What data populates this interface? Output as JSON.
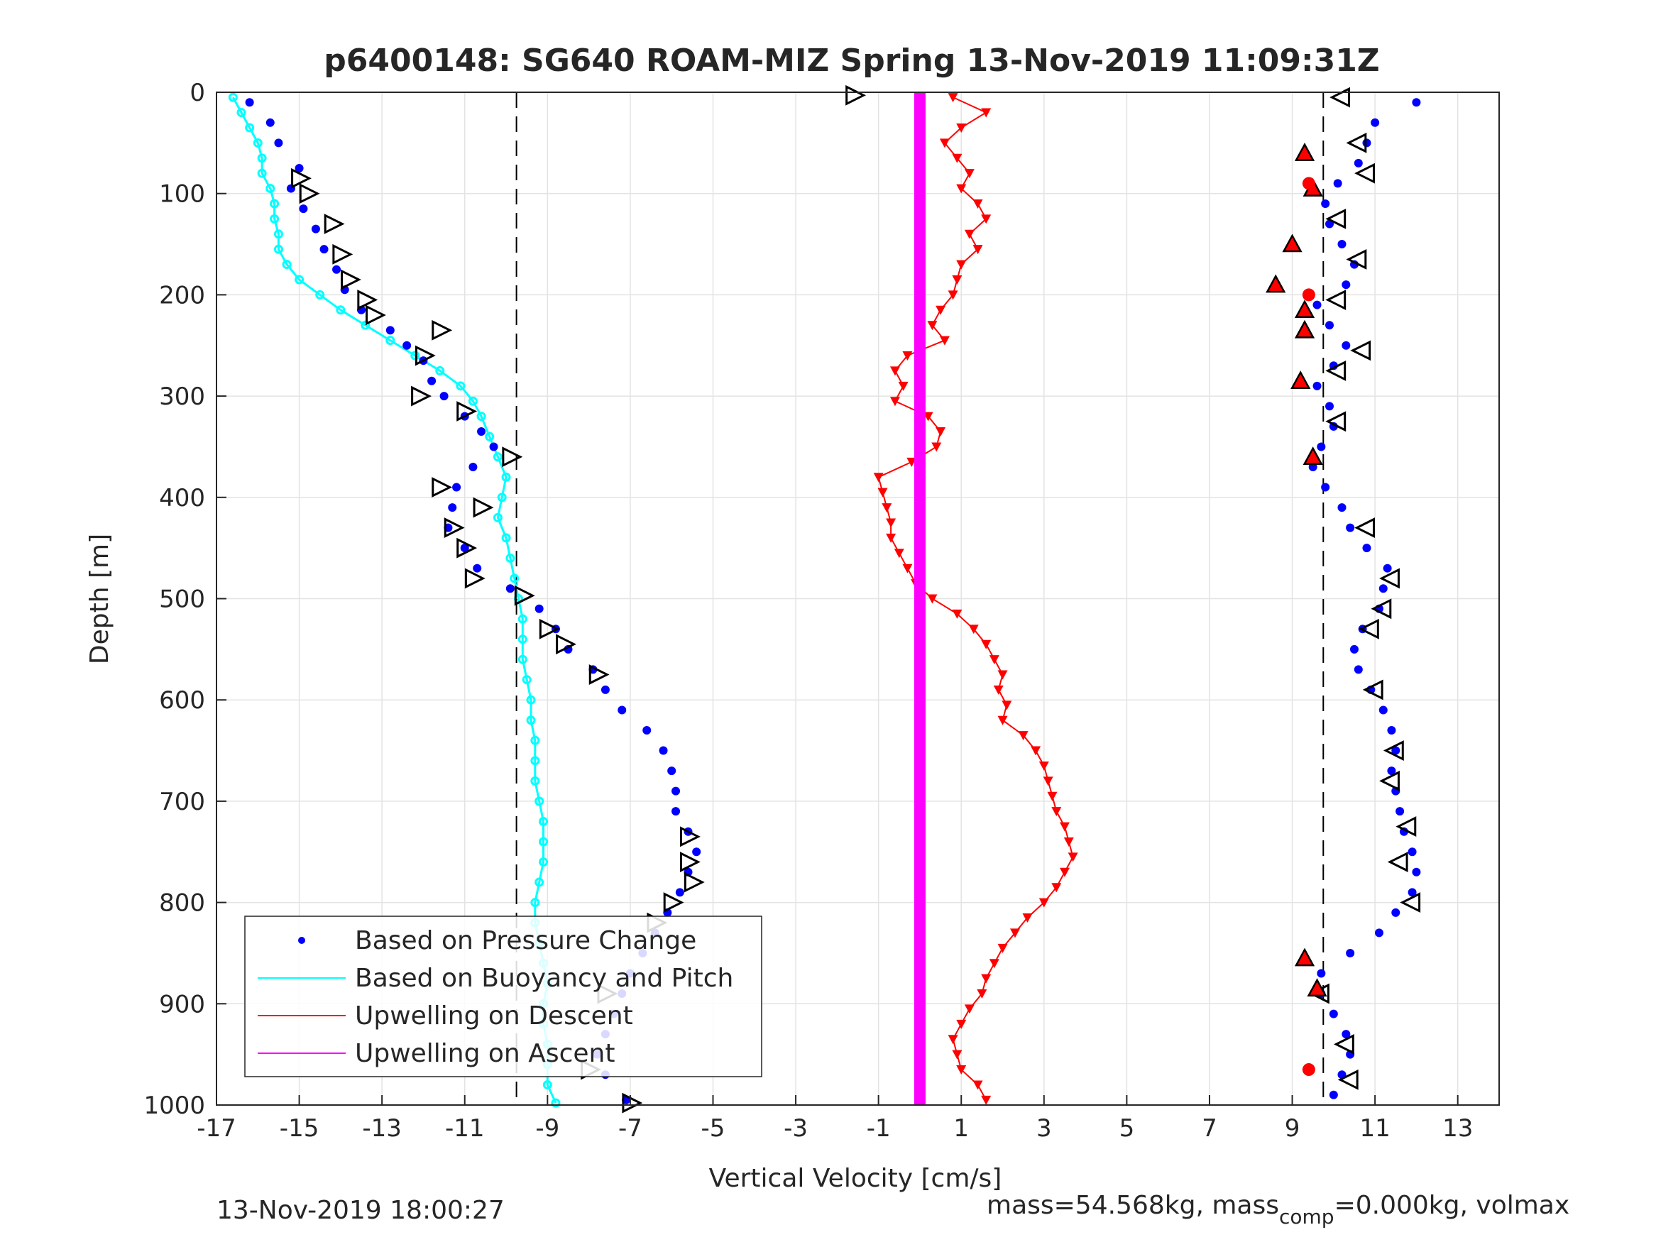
{
  "chart_data": {
    "type": "scatter",
    "title": "p6400148: SG640 ROAM-MIZ Spring 13-Nov-2019 11:09:31Z",
    "xlabel": "Vertical Velocity [cm/s]",
    "ylabel": "Depth [m]",
    "xlim": [
      -17,
      14
    ],
    "ylim": [
      0,
      1000
    ],
    "y_reversed": true,
    "grid": true,
    "legend_position": "bottom-left",
    "x_ticks": [
      -17,
      -15,
      -13,
      -11,
      -9,
      -7,
      -5,
      -3,
      -1,
      1,
      3,
      5,
      7,
      9,
      11,
      13
    ],
    "y_ticks": [
      0,
      100,
      200,
      300,
      400,
      500,
      600,
      700,
      800,
      900,
      1000
    ],
    "reference_lines_x": [
      -9.75,
      9.75
    ],
    "series": [
      {
        "name": "Based on Pressure Change",
        "color": "#0000ff",
        "marker": "dot",
        "descent_points": [
          [
            -16.2,
            10
          ],
          [
            -15.7,
            30
          ],
          [
            -15.5,
            50
          ],
          [
            -15.0,
            75
          ],
          [
            -15.2,
            95
          ],
          [
            -14.9,
            115
          ],
          [
            -14.6,
            135
          ],
          [
            -14.4,
            155
          ],
          [
            -14.1,
            175
          ],
          [
            -13.9,
            195
          ],
          [
            -13.5,
            215
          ],
          [
            -12.8,
            235
          ],
          [
            -12.4,
            250
          ],
          [
            -12.0,
            265
          ],
          [
            -11.8,
            285
          ],
          [
            -11.5,
            300
          ],
          [
            -11.0,
            320
          ],
          [
            -10.6,
            335
          ],
          [
            -10.3,
            350
          ],
          [
            -10.8,
            370
          ],
          [
            -11.2,
            390
          ],
          [
            -11.3,
            410
          ],
          [
            -11.4,
            430
          ],
          [
            -11.0,
            450
          ],
          [
            -10.7,
            470
          ],
          [
            -9.9,
            490
          ],
          [
            -9.2,
            510
          ],
          [
            -8.8,
            530
          ],
          [
            -8.5,
            550
          ],
          [
            -7.9,
            570
          ],
          [
            -7.6,
            590
          ],
          [
            -7.2,
            610
          ],
          [
            -6.6,
            630
          ],
          [
            -6.2,
            650
          ],
          [
            -6.0,
            670
          ],
          [
            -5.9,
            690
          ],
          [
            -5.9,
            710
          ],
          [
            -5.6,
            730
          ],
          [
            -5.4,
            750
          ],
          [
            -5.6,
            770
          ],
          [
            -5.8,
            790
          ],
          [
            -6.1,
            810
          ],
          [
            -6.4,
            830
          ],
          [
            -6.7,
            850
          ],
          [
            -7.0,
            870
          ],
          [
            -7.2,
            890
          ],
          [
            -7.4,
            910
          ],
          [
            -7.6,
            930
          ],
          [
            -7.8,
            950
          ],
          [
            -7.6,
            970
          ],
          [
            -7.1,
            995
          ]
        ],
        "ascent_points": [
          [
            12.0,
            10
          ],
          [
            11.0,
            30
          ],
          [
            10.8,
            50
          ],
          [
            10.6,
            70
          ],
          [
            10.1,
            90
          ],
          [
            9.8,
            110
          ],
          [
            9.9,
            130
          ],
          [
            10.2,
            150
          ],
          [
            10.5,
            170
          ],
          [
            10.3,
            190
          ],
          [
            9.6,
            210
          ],
          [
            9.9,
            230
          ],
          [
            10.3,
            250
          ],
          [
            10.0,
            270
          ],
          [
            9.6,
            290
          ],
          [
            9.9,
            310
          ],
          [
            10.0,
            330
          ],
          [
            9.7,
            350
          ],
          [
            9.5,
            370
          ],
          [
            9.8,
            390
          ],
          [
            10.2,
            410
          ],
          [
            10.4,
            430
          ],
          [
            10.8,
            450
          ],
          [
            11.3,
            470
          ],
          [
            11.2,
            490
          ],
          [
            11.1,
            510
          ],
          [
            10.7,
            530
          ],
          [
            10.5,
            550
          ],
          [
            10.6,
            570
          ],
          [
            10.9,
            590
          ],
          [
            11.2,
            610
          ],
          [
            11.4,
            630
          ],
          [
            11.5,
            650
          ],
          [
            11.4,
            670
          ],
          [
            11.5,
            690
          ],
          [
            11.6,
            710
          ],
          [
            11.7,
            730
          ],
          [
            11.9,
            750
          ],
          [
            12.0,
            770
          ],
          [
            11.9,
            790
          ],
          [
            11.5,
            810
          ],
          [
            11.1,
            830
          ],
          [
            10.4,
            850
          ],
          [
            9.7,
            870
          ],
          [
            9.7,
            890
          ],
          [
            10.0,
            910
          ],
          [
            10.3,
            930
          ],
          [
            10.4,
            950
          ],
          [
            10.2,
            970
          ],
          [
            10.0,
            990
          ]
        ]
      },
      {
        "name": "Based on Buoyancy and Pitch",
        "color": "#00ffff",
        "marker": "line",
        "points": [
          [
            -16.6,
            5
          ],
          [
            -16.4,
            20
          ],
          [
            -16.2,
            35
          ],
          [
            -16.0,
            50
          ],
          [
            -15.9,
            65
          ],
          [
            -15.9,
            80
          ],
          [
            -15.7,
            95
          ],
          [
            -15.6,
            110
          ],
          [
            -15.6,
            125
          ],
          [
            -15.5,
            140
          ],
          [
            -15.5,
            155
          ],
          [
            -15.3,
            170
          ],
          [
            -15.0,
            185
          ],
          [
            -14.5,
            200
          ],
          [
            -14.0,
            215
          ],
          [
            -13.4,
            230
          ],
          [
            -12.8,
            245
          ],
          [
            -12.2,
            260
          ],
          [
            -11.6,
            275
          ],
          [
            -11.1,
            290
          ],
          [
            -10.8,
            305
          ],
          [
            -10.6,
            320
          ],
          [
            -10.4,
            340
          ],
          [
            -10.2,
            360
          ],
          [
            -10.0,
            380
          ],
          [
            -10.1,
            400
          ],
          [
            -10.2,
            420
          ],
          [
            -10.0,
            440
          ],
          [
            -9.9,
            460
          ],
          [
            -9.8,
            480
          ],
          [
            -9.7,
            500
          ],
          [
            -9.6,
            520
          ],
          [
            -9.6,
            540
          ],
          [
            -9.6,
            560
          ],
          [
            -9.5,
            580
          ],
          [
            -9.4,
            600
          ],
          [
            -9.4,
            620
          ],
          [
            -9.3,
            640
          ],
          [
            -9.3,
            660
          ],
          [
            -9.3,
            680
          ],
          [
            -9.2,
            700
          ],
          [
            -9.1,
            720
          ],
          [
            -9.1,
            740
          ],
          [
            -9.1,
            760
          ],
          [
            -9.2,
            780
          ],
          [
            -9.3,
            800
          ],
          [
            -9.3,
            820
          ],
          [
            -9.2,
            840
          ],
          [
            -9.1,
            860
          ],
          [
            -9.0,
            880
          ],
          [
            -9.1,
            900
          ],
          [
            -9.1,
            920
          ],
          [
            -9.0,
            940
          ],
          [
            -9.0,
            960
          ],
          [
            -9.0,
            980
          ],
          [
            -8.8,
            998
          ]
        ]
      },
      {
        "name": "Upwelling on Descent",
        "color": "#ff0000",
        "marker": "triangle-down",
        "points": [
          [
            0.8,
            5
          ],
          [
            1.6,
            20
          ],
          [
            1.0,
            35
          ],
          [
            0.6,
            50
          ],
          [
            0.9,
            65
          ],
          [
            1.2,
            80
          ],
          [
            1.0,
            95
          ],
          [
            1.4,
            110
          ],
          [
            1.6,
            125
          ],
          [
            1.2,
            140
          ],
          [
            1.4,
            155
          ],
          [
            1.0,
            170
          ],
          [
            0.9,
            185
          ],
          [
            0.8,
            200
          ],
          [
            0.5,
            215
          ],
          [
            0.3,
            230
          ],
          [
            0.6,
            245
          ],
          [
            -0.3,
            260
          ],
          [
            -0.6,
            275
          ],
          [
            -0.4,
            290
          ],
          [
            -0.6,
            305
          ],
          [
            0.2,
            320
          ],
          [
            0.5,
            335
          ],
          [
            0.4,
            350
          ],
          [
            -0.2,
            365
          ],
          [
            -1.0,
            380
          ],
          [
            -0.9,
            395
          ],
          [
            -0.8,
            410
          ],
          [
            -0.7,
            425
          ],
          [
            -0.7,
            440
          ],
          [
            -0.5,
            455
          ],
          [
            -0.3,
            470
          ],
          [
            -0.1,
            485
          ],
          [
            0.3,
            500
          ],
          [
            0.9,
            515
          ],
          [
            1.3,
            530
          ],
          [
            1.6,
            545
          ],
          [
            1.8,
            560
          ],
          [
            2.0,
            575
          ],
          [
            1.9,
            590
          ],
          [
            2.1,
            605
          ],
          [
            2.0,
            620
          ],
          [
            2.5,
            635
          ],
          [
            2.8,
            650
          ],
          [
            3.0,
            665
          ],
          [
            3.1,
            680
          ],
          [
            3.2,
            695
          ],
          [
            3.3,
            710
          ],
          [
            3.5,
            725
          ],
          [
            3.6,
            740
          ],
          [
            3.7,
            755
          ],
          [
            3.5,
            770
          ],
          [
            3.3,
            785
          ],
          [
            3.0,
            800
          ],
          [
            2.6,
            815
          ],
          [
            2.3,
            830
          ],
          [
            2.0,
            845
          ],
          [
            1.8,
            860
          ],
          [
            1.6,
            875
          ],
          [
            1.5,
            890
          ],
          [
            1.2,
            905
          ],
          [
            1.0,
            920
          ],
          [
            0.8,
            935
          ],
          [
            0.9,
            950
          ],
          [
            1.0,
            965
          ],
          [
            1.4,
            980
          ],
          [
            1.6,
            995
          ]
        ]
      },
      {
        "name": "Upwelling on Ascent",
        "color": "#ff00ff",
        "marker": "line",
        "points": [
          [
            0.0,
            0
          ],
          [
            0.0,
            1000
          ]
        ]
      }
    ],
    "black_triangles_descent": [
      [
        -1.6,
        3
      ],
      [
        -15.0,
        85
      ],
      [
        -14.8,
        100
      ],
      [
        -14.2,
        130
      ],
      [
        -14.0,
        160
      ],
      [
        -13.8,
        185
      ],
      [
        -13.4,
        205
      ],
      [
        -13.2,
        220
      ],
      [
        -11.6,
        235
      ],
      [
        -12.0,
        260
      ],
      [
        -12.1,
        300
      ],
      [
        -11.0,
        315
      ],
      [
        -9.9,
        360
      ],
      [
        -11.6,
        390
      ],
      [
        -10.6,
        410
      ],
      [
        -11.3,
        430
      ],
      [
        -11.0,
        450
      ],
      [
        -10.8,
        480
      ],
      [
        -9.6,
        497
      ],
      [
        -9.0,
        530
      ],
      [
        -8.6,
        545
      ],
      [
        -7.8,
        575
      ],
      [
        -5.6,
        735
      ],
      [
        -5.6,
        760
      ],
      [
        -5.5,
        780
      ],
      [
        -6.0,
        800
      ],
      [
        -6.4,
        820
      ],
      [
        -7.6,
        890
      ],
      [
        -8.0,
        965
      ],
      [
        -7.0,
        998
      ]
    ],
    "black_triangles_ascent": [
      [
        10.2,
        5
      ],
      [
        10.6,
        50
      ],
      [
        10.8,
        80
      ],
      [
        10.1,
        125
      ],
      [
        10.6,
        165
      ],
      [
        10.1,
        205
      ],
      [
        10.7,
        255
      ],
      [
        10.1,
        275
      ],
      [
        10.1,
        325
      ],
      [
        10.8,
        430
      ],
      [
        11.4,
        480
      ],
      [
        11.2,
        510
      ],
      [
        10.9,
        530
      ],
      [
        11.0,
        590
      ],
      [
        11.5,
        650
      ],
      [
        11.4,
        680
      ],
      [
        11.8,
        725
      ],
      [
        11.6,
        760
      ],
      [
        11.9,
        800
      ],
      [
        10.3,
        940
      ],
      [
        10.4,
        975
      ],
      [
        9.7,
        890
      ]
    ],
    "red_triangles": [
      [
        9.3,
        60
      ],
      [
        9.5,
        95
      ],
      [
        9.0,
        150
      ],
      [
        8.6,
        190
      ],
      [
        9.3,
        215
      ],
      [
        9.3,
        235
      ],
      [
        9.2,
        285
      ],
      [
        9.5,
        360
      ],
      [
        9.3,
        855
      ],
      [
        9.6,
        885
      ]
    ],
    "red_dots": [
      [
        9.4,
        90
      ],
      [
        9.4,
        200
      ],
      [
        9.4,
        965
      ]
    ]
  },
  "footer": {
    "timestamp": "13-Nov-2019 18:00:27",
    "mass_text": "mass=54.568kg, mass",
    "mass_sub": "comp",
    "mass_rest": "=0.000kg, volmax"
  }
}
